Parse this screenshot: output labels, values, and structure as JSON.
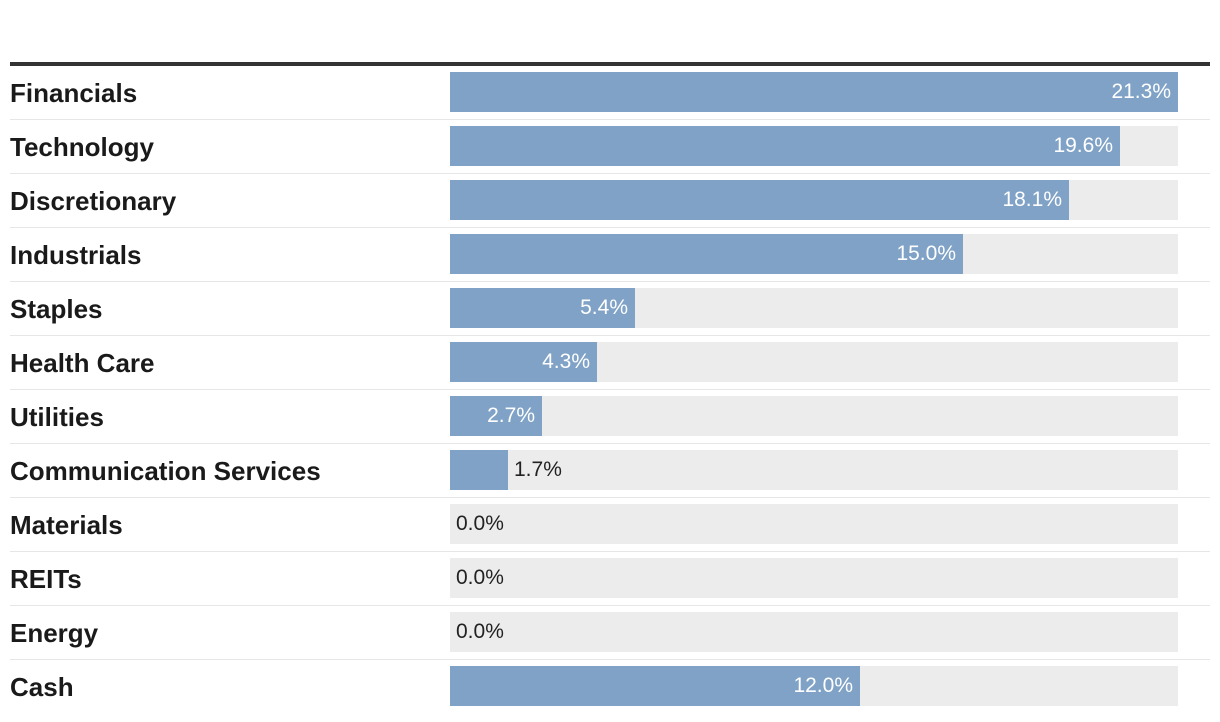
{
  "chart_data": {
    "type": "bar",
    "orientation": "horizontal",
    "title": "",
    "xlabel": "",
    "ylabel": "",
    "xlim": [
      0,
      21.3
    ],
    "value_suffix": "%",
    "bar_color": "#7fa2c6",
    "track_color": "#ececec",
    "categories": [
      "Financials",
      "Technology",
      "Discretionary",
      "Industrials",
      "Staples",
      "Health Care",
      "Utilities",
      "Communication Services",
      "Materials",
      "REITs",
      "Energy",
      "Cash"
    ],
    "values": [
      21.3,
      19.6,
      18.1,
      15.0,
      5.4,
      4.3,
      2.7,
      1.7,
      0.0,
      0.0,
      0.0,
      12.0
    ],
    "value_labels": [
      "21.3%",
      "19.6%",
      "18.1%",
      "15.0%",
      "5.4%",
      "4.3%",
      "2.7%",
      "1.7%",
      "0.0%",
      "0.0%",
      "0.0%",
      "12.0%"
    ]
  }
}
